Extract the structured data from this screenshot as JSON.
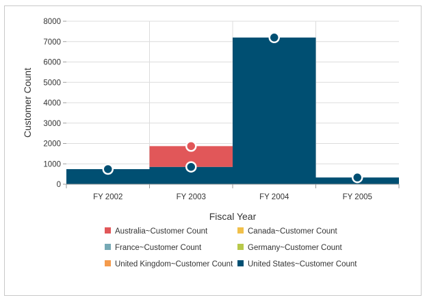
{
  "chart_data": {
    "type": "bar",
    "stacked": true,
    "categories": [
      "FY 2002",
      "FY 2003",
      "FY 2004",
      "FY 2005"
    ],
    "xlabel": "Fiscal Year",
    "ylabel": "Customer Count",
    "ylim": [
      0,
      8000
    ],
    "yticks": [
      "0",
      "1000",
      "2000",
      "3000",
      "4000",
      "5000",
      "6000",
      "7000",
      "8000"
    ],
    "grid": true,
    "legend_position": "bottom",
    "series": [
      {
        "name": "Australia~Customer Count",
        "color": "#e15759",
        "values": [
          0,
          1020,
          0,
          0
        ]
      },
      {
        "name": "Canada~Customer Count",
        "color": "#f1c04a",
        "values": [
          0,
          0,
          0,
          0
        ]
      },
      {
        "name": "France~Customer Count",
        "color": "#76a9b5",
        "values": [
          0,
          0,
          0,
          0
        ]
      },
      {
        "name": "Germany~Customer Count",
        "color": "#b8c94a",
        "values": [
          0,
          0,
          0,
          0
        ]
      },
      {
        "name": "United Kingdom~Customer Count",
        "color": "#f49b4d",
        "values": [
          0,
          0,
          0,
          0
        ]
      },
      {
        "name": "United States~Customer Count",
        "color": "#004f72",
        "values": [
          740,
          850,
          7200,
          330
        ]
      }
    ]
  }
}
